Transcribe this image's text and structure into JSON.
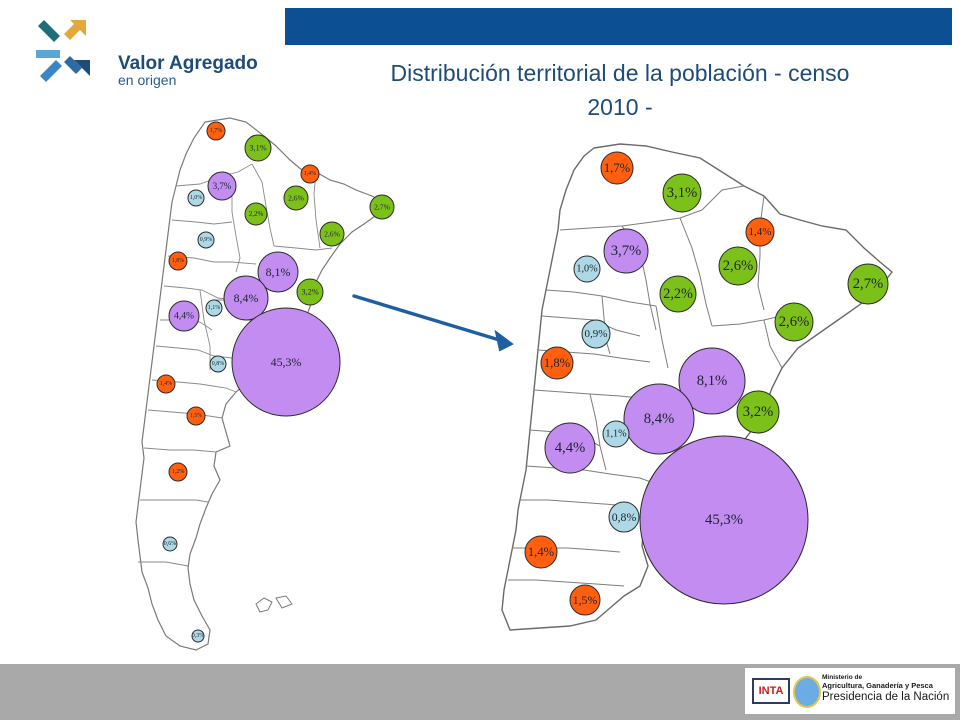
{
  "header": {
    "logo_name": "Valor Agregado",
    "logo_sub": "en origen",
    "title_line1": "Distribución territorial de la población - censo",
    "title_line2": "2010 -"
  },
  "colors": {
    "top_bar": "#0d4f93",
    "orange": "#ff5f0f",
    "green": "#7cc11a",
    "lightblue": "#add8e6",
    "purple": "#c28cf0",
    "arrow": "#1f5fa0",
    "footer": "#a9a9a9"
  },
  "legend_note": "",
  "bubbles": [
    {
      "label": "1,7%",
      "category": "orange"
    },
    {
      "label": "3,1%",
      "category": "green"
    },
    {
      "label": "1,4%",
      "category": "orange"
    },
    {
      "label": "3,7%",
      "category": "purple"
    },
    {
      "label": "1,0%",
      "category": "lightblue"
    },
    {
      "label": "2,6%",
      "category": "green"
    },
    {
      "label": "2,2%",
      "category": "green"
    },
    {
      "label": "2,7%",
      "category": "green"
    },
    {
      "label": "0,9%",
      "category": "lightblue"
    },
    {
      "label": "2,6%",
      "category": "green"
    },
    {
      "label": "1,8%",
      "category": "orange"
    },
    {
      "label": "8,1%",
      "category": "purple"
    },
    {
      "label": "8,4%",
      "category": "purple"
    },
    {
      "label": "3,2%",
      "category": "green"
    },
    {
      "label": "1,1%",
      "category": "lightblue"
    },
    {
      "label": "4,4%",
      "category": "purple"
    },
    {
      "label": "45,3%",
      "category": "purple"
    },
    {
      "label": "0,8%",
      "category": "lightblue"
    },
    {
      "label": "1,4%",
      "category": "orange"
    },
    {
      "label": "1,5%",
      "category": "orange"
    },
    {
      "label": "1,2%",
      "category": "orange"
    },
    {
      "label": "0,6%",
      "category": "lightblue"
    },
    {
      "label": "0,3%",
      "category": "lightblue"
    }
  ],
  "footer": {
    "inta": "INTA",
    "ministry_line1": "Ministerio de",
    "ministry_line2": "Agricultura, Ganadería y Pesca",
    "ministry_line3": "Presidencia de la Nación"
  }
}
